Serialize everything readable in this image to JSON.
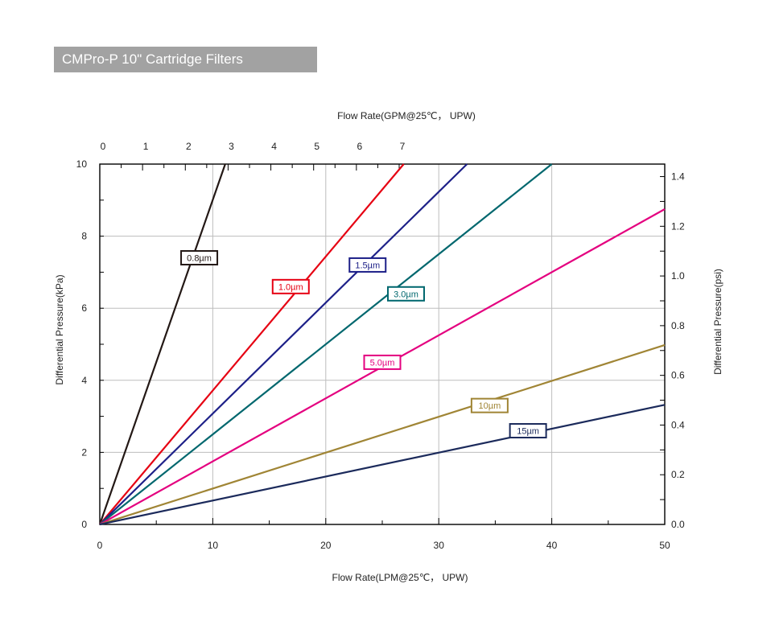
{
  "title": "CMPro-P 10\" Cartridge Filters",
  "chart_data": {
    "type": "line",
    "top_xlabel": "Flow Rate(GPM@25℃， UPW)",
    "bottom_xlabel": "Flow Rate(LPM@25℃， UPW)",
    "left_ylabel": "Differential Pressure(kPa)",
    "right_ylabel": "Differential Pressure(psi)",
    "xlim": [
      0,
      50
    ],
    "ylim": [
      0,
      10
    ],
    "x_ticks": [
      "0",
      "10",
      "20",
      "30",
      "40",
      "50"
    ],
    "y_ticks": [
      "0",
      "2",
      "4",
      "6",
      "8",
      "10"
    ],
    "top_ticks": [
      "0",
      "1",
      "2",
      "3",
      "4",
      "5",
      "6",
      "7"
    ],
    "right_ticks": [
      "0.0",
      "0.2",
      "0.4",
      "0.6",
      "0.8",
      "1.0",
      "1.2",
      "1.4"
    ],
    "grid": true,
    "series": [
      {
        "name": "0.8µm",
        "color": "#231815",
        "x": [
          0,
          11.1
        ],
        "y": [
          0,
          10
        ],
        "label_at": [
          8.8,
          7.4
        ]
      },
      {
        "name": "1.0µm",
        "color": "#e60012",
        "x": [
          0,
          26.9
        ],
        "y": [
          0,
          10
        ],
        "label_at": [
          16.9,
          6.6
        ]
      },
      {
        "name": "1.5µm",
        "color": "#1d2088",
        "x": [
          0,
          32.5
        ],
        "y": [
          0,
          10
        ],
        "label_at": [
          23.7,
          7.2
        ]
      },
      {
        "name": "3.0µm",
        "color": "#00676e",
        "x": [
          0,
          40.0
        ],
        "y": [
          0,
          10
        ],
        "label_at": [
          27.1,
          6.4
        ]
      },
      {
        "name": "5.0µm",
        "color": "#e4007f",
        "x": [
          0,
          50
        ],
        "y": [
          0,
          8.75
        ],
        "label_at": [
          25.0,
          4.5
        ]
      },
      {
        "name": "10µm",
        "color": "#a08535",
        "x": [
          0,
          50
        ],
        "y": [
          0,
          4.98
        ],
        "label_at": [
          34.5,
          3.3
        ]
      },
      {
        "name": "15µm",
        "color": "#1b2a5b",
        "x": [
          0,
          50
        ],
        "y": [
          0,
          3.32
        ],
        "label_at": [
          37.9,
          2.6
        ]
      }
    ]
  }
}
